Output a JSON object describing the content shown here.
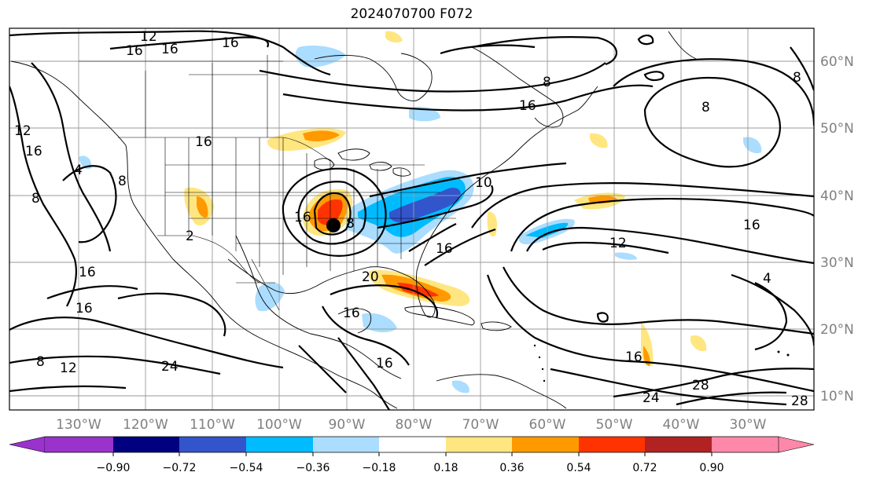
{
  "title": "2024070700 F072",
  "longitude_labels": [
    "130°W",
    "120°W",
    "110°W",
    "100°W",
    "90°W",
    "80°W",
    "70°W",
    "60°W",
    "50°W",
    "40°W",
    "30°W"
  ],
  "latitude_labels": [
    "60°N",
    "50°N",
    "40°N",
    "30°N",
    "20°N",
    "10°N"
  ],
  "colorbar": {
    "ticks": [
      "−0.90",
      "−0.72",
      "−0.54",
      "−0.36",
      "−0.18",
      "0.18",
      "0.36",
      "0.54",
      "0.72",
      "0.90"
    ],
    "colors": [
      "#9933cc",
      "#000080",
      "#3355cc",
      "#00bbff",
      "#aaddff",
      "#ffffff",
      "#ffe680",
      "#ff9900",
      "#ff3300",
      "#b22222",
      "#ff88aa"
    ]
  },
  "contour_labels": [
    "12",
    "16",
    "16",
    "16",
    "12",
    "16",
    "8",
    "4",
    "8",
    "2",
    "16",
    "16",
    "8",
    "12",
    "24",
    "16",
    "20",
    "16",
    "16",
    "16",
    "8",
    "10",
    "16",
    "12",
    "8",
    "16",
    "16",
    "8",
    "8",
    "4",
    "16",
    "24",
    "28",
    "28"
  ],
  "storm_marker": "black-dot"
}
